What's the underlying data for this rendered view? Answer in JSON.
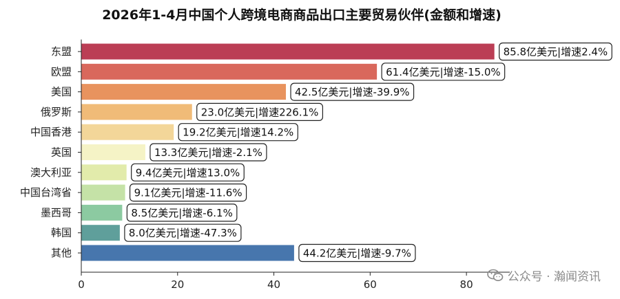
{
  "chart_data": {
    "type": "bar",
    "orientation": "horizontal",
    "title": "2026年1-4月中国个人跨境电商商品出口主要贸易伙伴(金额和增速)",
    "categories": [
      "东盟",
      "欧盟",
      "美国",
      "俄罗斯",
      "中国香港",
      "英国",
      "澳大利亚",
      "中国台湾省",
      "墨西哥",
      "韩国",
      "其他"
    ],
    "values": [
      85.8,
      61.4,
      42.5,
      23.0,
      19.2,
      13.3,
      9.4,
      9.1,
      8.5,
      8.0,
      44.2
    ],
    "value_unit": "亿美元",
    "growth": [
      "2.4%",
      "-15.0%",
      "-39.9%",
      "226.1%",
      "14.2%",
      "-2.1%",
      "13.0%",
      "-11.6%",
      "-6.1%",
      "-47.3%",
      "-9.7%"
    ],
    "data_labels": [
      "85.8亿美元|增速2.4%",
      "61.4亿美元|增速-15.0%",
      "42.5亿美元|增速-39.9%",
      "23.0亿美元|增速226.1%",
      "19.2亿美元|增速14.2%",
      "13.3亿美元|增速-2.1%",
      "9.4亿美元|增速13.0%",
      "9.1亿美元|增速-11.6%",
      "8.5亿美元|增速-6.1%",
      "8.0亿美元|增速-47.3%",
      "44.2亿美元|增速-9.7%"
    ],
    "colors": [
      "#bb3e55",
      "#d9685c",
      "#e8935e",
      "#f0bb78",
      "#f3d699",
      "#f5f3c6",
      "#e2ebab",
      "#c5e2a7",
      "#8ccaa1",
      "#5f9f9b",
      "#4776ad"
    ],
    "xlim": [
      0,
      89
    ],
    "xticks": [
      0,
      20,
      40,
      60,
      80
    ],
    "xlabel": "",
    "ylabel": "",
    "grid": false,
    "legend": false
  },
  "watermark": {
    "text": "公众号 · 瀚闻资讯",
    "icon": "wechat-icon"
  }
}
